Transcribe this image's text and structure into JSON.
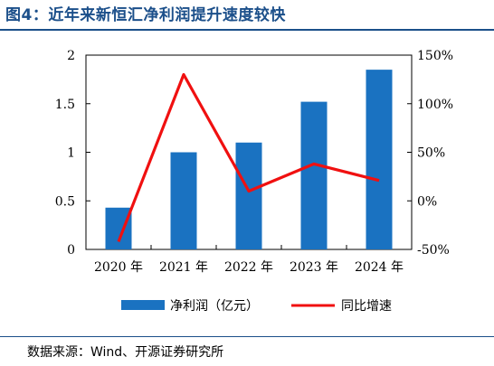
{
  "header": {
    "title": "图4：近年来新恒汇净利润提升速度较快"
  },
  "footer": {
    "source": "数据来源：Wind、开源证券研究所"
  },
  "colors": {
    "bar": "#1a72c1",
    "line": "#f01010",
    "title": "#1b4f8a"
  },
  "chart_data": {
    "type": "bar",
    "categories": [
      "2020 年",
      "2021 年",
      "2022 年",
      "2023 年",
      "2024 年"
    ],
    "series": [
      {
        "name": "净利润（亿元）",
        "type": "bar",
        "axis": "left",
        "values": [
          0.43,
          1.0,
          1.1,
          1.52,
          1.85
        ]
      },
      {
        "name": "同比增速",
        "type": "line",
        "axis": "right",
        "values": [
          -42,
          130,
          10,
          38,
          21
        ]
      }
    ],
    "y_left": {
      "lim": [
        0,
        2
      ],
      "ticks": [
        "0",
        "0.5",
        "1",
        "1.5",
        "2"
      ],
      "tick_values": [
        0,
        0.5,
        1,
        1.5,
        2
      ]
    },
    "y_right": {
      "lim": [
        -50,
        150
      ],
      "ticks": [
        "-50%",
        "0%",
        "50%",
        "100%",
        "150%"
      ],
      "tick_values": [
        -50,
        0,
        50,
        100,
        150
      ]
    },
    "grid": false,
    "legend": "bottom"
  }
}
